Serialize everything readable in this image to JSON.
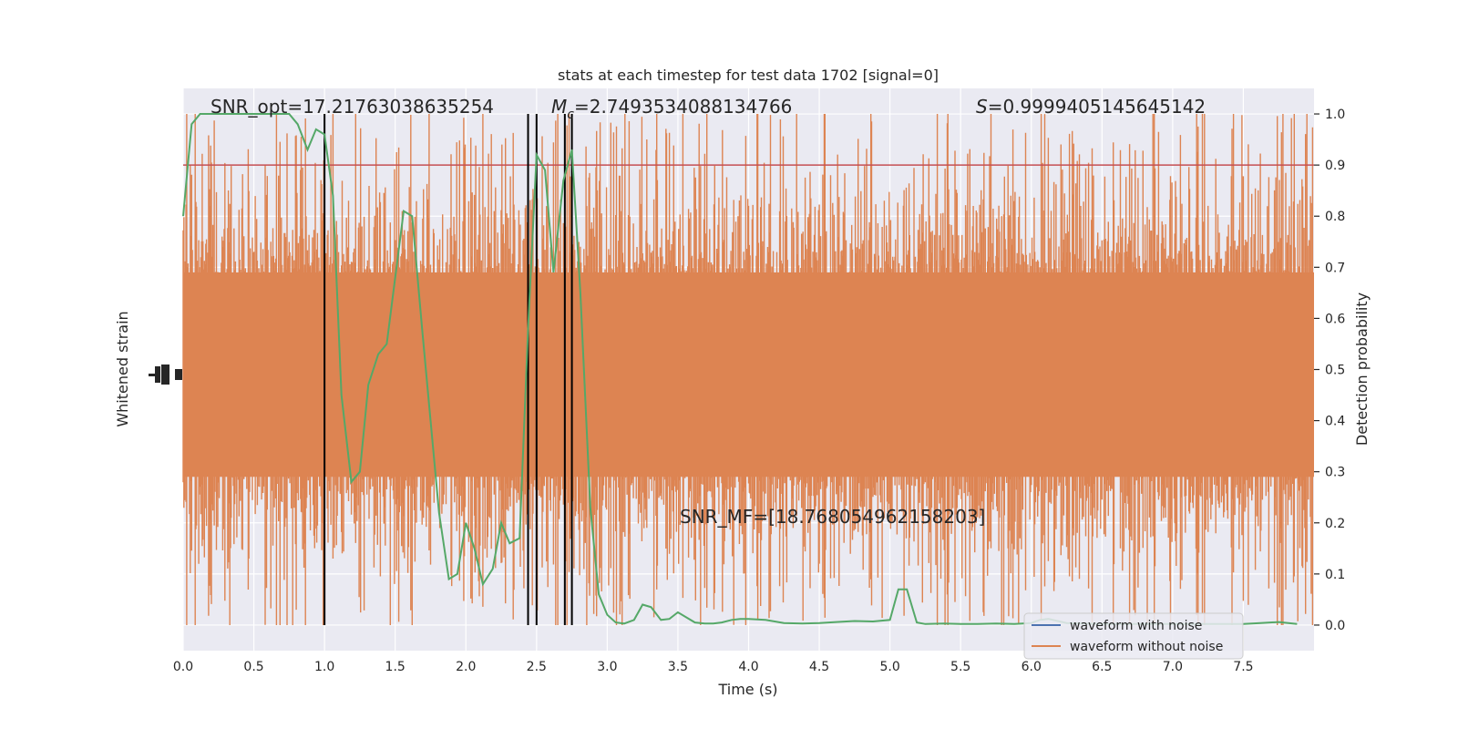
{
  "chart_data": {
    "type": "line",
    "title": "stats at each timestep for test data 1702 [signal=0]",
    "xlabel": "Time (s)",
    "ylabel_left": "Whitened strain",
    "ylabel_right": "Detection probability",
    "xlim": [
      0.0,
      8.0
    ],
    "ylim_right": [
      -0.05,
      1.05
    ],
    "x_ticks": [
      "0.0",
      "0.5",
      "1.0",
      "1.5",
      "2.0",
      "2.5",
      "3.0",
      "3.5",
      "4.0",
      "4.5",
      "5.0",
      "5.5",
      "6.0",
      "6.5",
      "7.0",
      "7.5"
    ],
    "x_tick_values": [
      0.0,
      0.5,
      1.0,
      1.5,
      2.0,
      2.5,
      3.0,
      3.5,
      4.0,
      4.5,
      5.0,
      5.5,
      6.0,
      6.5,
      7.0,
      7.5
    ],
    "y_ticks_right": [
      "0.0",
      "0.1",
      "0.2",
      "0.3",
      "0.4",
      "0.5",
      "0.6",
      "0.7",
      "0.8",
      "0.9",
      "1.0"
    ],
    "y_tick_values_right": [
      0.0,
      0.1,
      0.2,
      0.3,
      0.4,
      0.5,
      0.6,
      0.7,
      0.8,
      0.9,
      1.0
    ],
    "threshold": 0.9,
    "vlines_x": [
      1.0,
      2.44,
      2.5,
      2.7,
      2.75
    ],
    "annotations": {
      "snr_opt": "SNR_opt=17.21763038635254",
      "mc_symbol": "M",
      "mc_sub": "c",
      "mc_value": "=2.7493534088134766",
      "s_symbol": "S",
      "s_value": "=0.9999405145645142",
      "snr_mf": "SNR_MF=[18.768054962158203]"
    },
    "legend": {
      "position": "lower-right",
      "entries": [
        "waveform with noise",
        "waveform without noise"
      ]
    },
    "grid": true,
    "colors": {
      "background": "#eaeaf2",
      "grid": "#ffffff",
      "noise": "#dd8452",
      "probability": "#55a868",
      "threshold": "#c44e52",
      "vlines": "#000000",
      "with_noise": "#4c72b0"
    },
    "series": [
      {
        "name": "Detection probability",
        "x": [
          0.0,
          0.06,
          0.12,
          0.19,
          0.25,
          0.31,
          0.38,
          0.44,
          0.5,
          0.56,
          0.62,
          0.69,
          0.75,
          0.81,
          0.88,
          0.94,
          1.0,
          1.06,
          1.12,
          1.19,
          1.25,
          1.31,
          1.38,
          1.44,
          1.5,
          1.56,
          1.62,
          1.69,
          1.75,
          1.81,
          1.88,
          1.94,
          2.0,
          2.06,
          2.12,
          2.19,
          2.25,
          2.31,
          2.38,
          2.44,
          2.5,
          2.56,
          2.62,
          2.69,
          2.75,
          2.81,
          2.88,
          2.94,
          3.0,
          3.06,
          3.12,
          3.19,
          3.25,
          3.31,
          3.38,
          3.44,
          3.5,
          3.56,
          3.62,
          3.69,
          3.75,
          3.81,
          3.88,
          3.94,
          4.0,
          4.12,
          4.25,
          4.38,
          4.5,
          4.62,
          4.75,
          4.88,
          5.0,
          5.06,
          5.12,
          5.19,
          5.25,
          5.38,
          5.5,
          5.62,
          5.75,
          5.88,
          6.0,
          6.06,
          6.12,
          6.25,
          6.38,
          6.5,
          6.75,
          7.0,
          7.25,
          7.5,
          7.62,
          7.75,
          7.88
        ],
        "values": [
          0.8,
          0.98,
          1.0,
          1.0,
          1.0,
          1.0,
          1.0,
          1.0,
          1.0,
          1.0,
          1.0,
          1.0,
          1.0,
          0.98,
          0.93,
          0.97,
          0.96,
          0.84,
          0.45,
          0.28,
          0.3,
          0.47,
          0.53,
          0.55,
          0.68,
          0.81,
          0.8,
          0.58,
          0.4,
          0.22,
          0.09,
          0.1,
          0.2,
          0.15,
          0.08,
          0.11,
          0.2,
          0.16,
          0.17,
          0.58,
          0.92,
          0.89,
          0.69,
          0.87,
          0.93,
          0.65,
          0.23,
          0.06,
          0.02,
          0.005,
          0.003,
          0.01,
          0.04,
          0.035,
          0.01,
          0.012,
          0.025,
          0.015,
          0.005,
          0.003,
          0.003,
          0.005,
          0.01,
          0.012,
          0.012,
          0.01,
          0.004,
          0.003,
          0.004,
          0.006,
          0.008,
          0.007,
          0.01,
          0.07,
          0.07,
          0.005,
          0.002,
          0.003,
          0.002,
          0.002,
          0.003,
          0.002,
          0.004,
          0.01,
          0.012,
          0.004,
          0.003,
          0.002,
          0.002,
          0.002,
          0.002,
          0.002,
          0.004,
          0.006,
          0.002
        ]
      },
      {
        "name": "waveform without noise",
        "kind": "dense-noise",
        "description_center": 0.49,
        "core_halfwidth": 0.2,
        "spike_max": 1.0,
        "spike_min": 0.0
      },
      {
        "name": "waveform with noise",
        "values": []
      }
    ]
  }
}
